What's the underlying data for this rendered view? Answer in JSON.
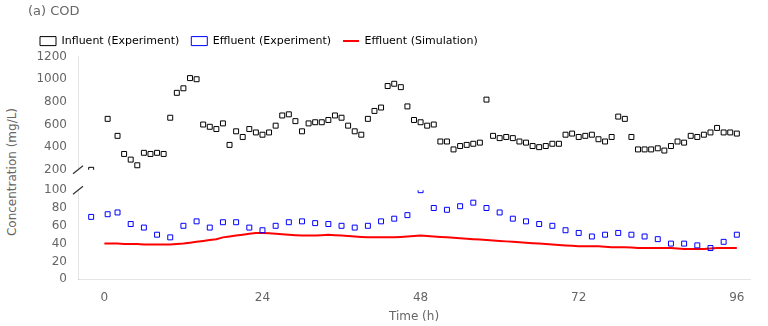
{
  "chart_data": {
    "type": "scatter",
    "title": "(a) COD",
    "xlabel": "Time (h)",
    "ylabel": "Concentration (mg/L)",
    "xlim": [
      -4,
      98
    ],
    "xticks": [
      0,
      24,
      48,
      72,
      96
    ],
    "ylim": [
      0,
      100
    ],
    "yticks": [
      0,
      20,
      40,
      60,
      80,
      100
    ],
    "y2lim": [
      200,
      1200
    ],
    "y2ticks": [
      200,
      400,
      600,
      800,
      1000,
      1200
    ],
    "grid": false,
    "legend": "upper left",
    "series": [
      {
        "name": "Influent (Experiment)",
        "type": "scatter",
        "marker": "square",
        "color": "#000000",
        "axis": "y2",
        "x": [
          -2,
          0.5,
          2,
          3,
          4,
          5,
          6,
          7,
          8,
          9,
          10,
          11,
          12,
          13,
          14,
          15,
          16,
          17,
          18,
          19,
          20,
          21,
          22,
          23,
          24,
          25,
          26,
          27,
          28,
          29,
          30,
          31,
          32,
          33,
          34,
          35,
          36,
          37,
          38,
          39,
          40,
          41,
          42,
          43,
          44,
          45,
          46,
          47,
          48,
          49,
          50,
          51,
          52,
          53,
          54,
          55,
          56,
          57,
          58,
          59,
          60,
          61,
          62,
          63,
          64,
          65,
          66,
          67,
          68,
          69,
          70,
          71,
          72,
          73,
          74,
          75,
          76,
          77,
          78,
          79,
          80,
          81,
          82,
          83,
          84,
          85,
          86,
          87,
          88,
          89,
          90,
          91,
          92,
          93,
          94,
          95,
          96
        ],
        "values": [
          200,
          650,
          500,
          340,
          290,
          240,
          350,
          340,
          350,
          340,
          660,
          880,
          920,
          1010,
          1000,
          600,
          580,
          560,
          610,
          420,
          540,
          490,
          560,
          530,
          510,
          530,
          590,
          680,
          690,
          630,
          540,
          610,
          620,
          620,
          640,
          680,
          660,
          590,
          540,
          510,
          650,
          720,
          750,
          940,
          960,
          930,
          760,
          640,
          620,
          590,
          600,
          450,
          450,
          380,
          410,
          420,
          430,
          440,
          820,
          500,
          480,
          490,
          480,
          450,
          440,
          410,
          400,
          410,
          430,
          430,
          510,
          520,
          490,
          500,
          510,
          470,
          450,
          490,
          670,
          650,
          490,
          380,
          380,
          380,
          390,
          370,
          410,
          450,
          440,
          500,
          490,
          510,
          530,
          570,
          530,
          530,
          520
        ]
      },
      {
        "name": "Effluent (Experiment)",
        "type": "scatter",
        "marker": "square",
        "color": "#0000ff",
        "x": [
          -2,
          0.5,
          2,
          4,
          6,
          8,
          10,
          12,
          14,
          16,
          18,
          20,
          22,
          24,
          26,
          28,
          30,
          32,
          34,
          36,
          38,
          40,
          42,
          44,
          46,
          48,
          50,
          52,
          54,
          56,
          58,
          60,
          62,
          64,
          66,
          68,
          70,
          72,
          74,
          76,
          78,
          80,
          82,
          84,
          86,
          88,
          90,
          92,
          94,
          96
        ],
        "values": [
          70,
          73,
          75,
          62,
          58,
          50,
          47,
          60,
          65,
          58,
          64,
          64,
          58,
          55,
          60,
          64,
          65,
          63,
          62,
          60,
          58,
          60,
          65,
          68,
          72,
          100,
          80,
          78,
          82,
          86,
          80,
          75,
          68,
          65,
          62,
          60,
          55,
          52,
          48,
          50,
          52,
          50,
          48,
          45,
          40,
          40,
          38,
          35,
          42,
          50
        ]
      },
      {
        "name": "Effluent (Simulation)",
        "type": "line",
        "line_style": "solid",
        "color": "#ff0000",
        "x": [
          0,
          1,
          2,
          3,
          4,
          5,
          6,
          7,
          8,
          9,
          10,
          11,
          12,
          13,
          14,
          15,
          16,
          17,
          18,
          19,
          20,
          21,
          22,
          23,
          24,
          25,
          26,
          27,
          28,
          29,
          30,
          31,
          32,
          33,
          34,
          35,
          36,
          37,
          38,
          39,
          40,
          41,
          42,
          43,
          44,
          45,
          46,
          47,
          48,
          49,
          50,
          51,
          52,
          53,
          54,
          55,
          56,
          57,
          58,
          59,
          60,
          61,
          62,
          63,
          64,
          65,
          66,
          67,
          68,
          69,
          70,
          71,
          72,
          73,
          74,
          75,
          76,
          77,
          78,
          79,
          80,
          81,
          82,
          83,
          84,
          85,
          86,
          87,
          88,
          89,
          90,
          91,
          92,
          93,
          94,
          95,
          96
        ],
        "values": [
          40,
          40,
          40,
          39.5,
          39.5,
          39.5,
          39,
          39,
          39,
          39,
          39,
          39.5,
          40,
          41,
          42,
          43,
          44,
          45,
          47,
          48,
          49,
          50,
          51,
          52,
          52,
          51.5,
          51,
          50.5,
          50,
          49.5,
          49,
          49,
          49,
          49.5,
          50,
          49.5,
          49,
          48.5,
          48,
          47.5,
          47,
          47,
          47,
          47,
          47,
          47.5,
          48,
          48.5,
          49,
          48.5,
          48,
          47.5,
          47,
          46.5,
          46,
          45.5,
          45,
          44.5,
          44,
          43.5,
          43,
          42.5,
          42,
          41.5,
          41,
          40.5,
          40,
          39.5,
          39,
          38.5,
          38,
          37.5,
          37,
          37,
          37,
          37,
          36.5,
          36,
          36,
          36,
          35.5,
          35,
          35,
          35,
          35,
          35,
          35,
          34.5,
          34,
          34,
          34,
          34,
          34.5,
          35,
          35,
          35,
          35
        ]
      }
    ]
  }
}
